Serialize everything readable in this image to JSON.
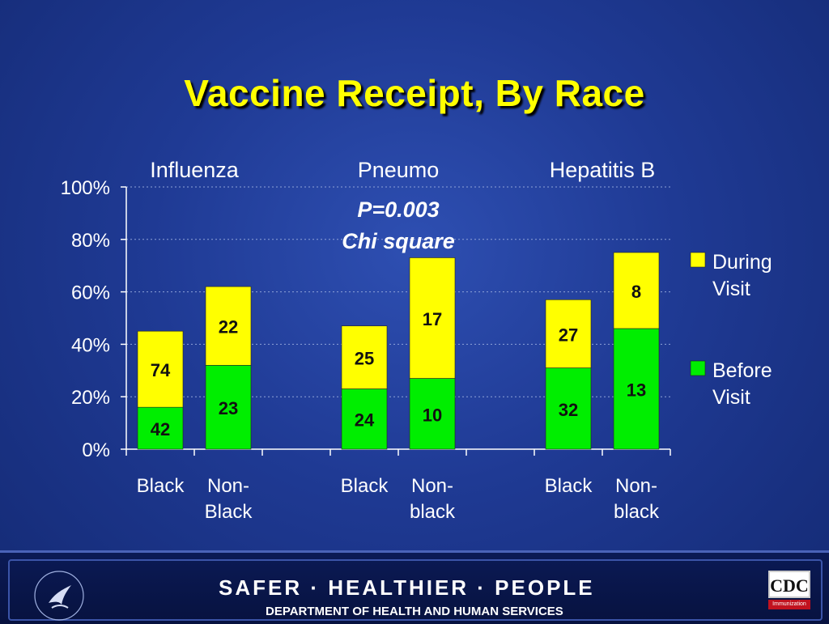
{
  "title": "Vaccine Receipt, By Race",
  "colors": {
    "during": "#ffff00",
    "before": "#00ee00",
    "title": "#ffff00",
    "text": "#ffffff",
    "annotation": "#ffffff"
  },
  "chart_data": {
    "type": "bar",
    "stacked": true,
    "groups": [
      "Influenza",
      "Pneumo",
      "Hepatitis B"
    ],
    "categories": [
      {
        "group": "Influenza",
        "label": [
          "Black",
          ""
        ]
      },
      {
        "group": "Influenza",
        "label": [
          "Non-",
          "Black"
        ]
      },
      {
        "group": "Pneumo",
        "label": [
          "Black",
          ""
        ]
      },
      {
        "group": "Pneumo",
        "label": [
          "Non-",
          "black"
        ]
      },
      {
        "group": "Hepatitis B",
        "label": [
          "Black",
          ""
        ]
      },
      {
        "group": "Hepatitis B",
        "label": [
          "Non-",
          "black"
        ]
      }
    ],
    "series": [
      {
        "name": "Before Visit",
        "values": [
          16,
          32,
          23,
          27,
          31,
          46
        ],
        "data_labels": [
          "42",
          "23",
          "24",
          "10",
          "32",
          "13"
        ]
      },
      {
        "name": "During Visit",
        "values": [
          29,
          30,
          24,
          46,
          26,
          29
        ],
        "data_labels": [
          "74",
          "22",
          "25",
          "17",
          "27",
          "8"
        ]
      }
    ],
    "ylim": [
      0,
      100
    ],
    "yticks": [
      "0%",
      "20%",
      "40%",
      "60%",
      "80%",
      "100%"
    ],
    "grid": true,
    "legend": {
      "position": "right",
      "entries": [
        [
          "During",
          "Visit"
        ],
        [
          "Before",
          "Visit"
        ]
      ]
    },
    "annotation": [
      "P=0.003",
      "Chi square"
    ]
  },
  "footer": {
    "tagline": "SAFER · HEALTHIER · PEOPLE",
    "department": "DEPARTMENT OF HEALTH AND HUMAN SERVICES",
    "cdc_logo_text": "CDC",
    "cdc_logo_subtext": "Immunization"
  }
}
